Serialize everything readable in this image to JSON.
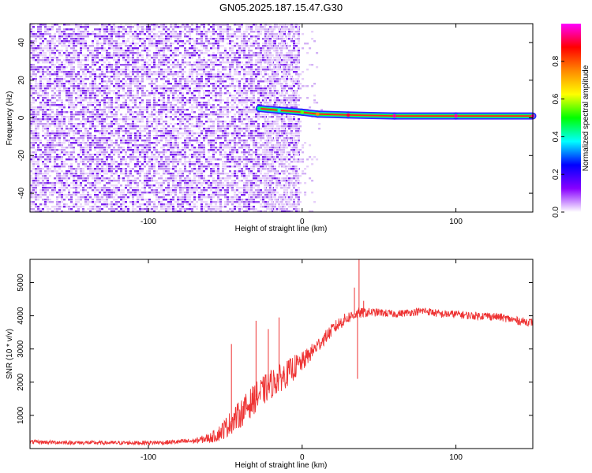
{
  "title": "GN05.2025.187.15.47.G30",
  "chart_data": [
    {
      "type": "heatmap",
      "xlabel": "Height of straight line (km)",
      "ylabel": "Frequency (Hz)",
      "xlim": [
        -177,
        150
      ],
      "ylim": [
        -50,
        50
      ],
      "x_ticks": [
        -100,
        0,
        100
      ],
      "y_ticks": [
        -40,
        -20,
        0,
        20,
        40
      ],
      "grid": false,
      "colorbar": {
        "label": "Normalized spectral amplitude",
        "range": [
          0,
          1
        ],
        "ticks": [
          0.0,
          0.2,
          0.4,
          0.6,
          0.8
        ],
        "colormap": [
          "#ffffff",
          "#8800ff",
          "#0000ff",
          "#00ffff",
          "#00ff00",
          "#ffff00",
          "#ff8800",
          "#ff0000",
          "#ff00ff"
        ]
      },
      "noise_region": {
        "x_range": [
          -177,
          -2
        ],
        "freq_range": [
          -50,
          50
        ],
        "amplitude": 0.15
      },
      "fade_region": {
        "x_range": [
          -25,
          12
        ],
        "amplitude": 0.08
      },
      "signal_line": {
        "points": [
          {
            "x": -28,
            "freq": 5,
            "amplitude": 0.45
          },
          {
            "x": -15,
            "freq": 4,
            "amplitude": 0.4
          },
          {
            "x": 0,
            "freq": 3,
            "amplitude": 0.55
          },
          {
            "x": 10,
            "freq": 2,
            "amplitude": 0.75
          },
          {
            "x": 30,
            "freq": 1.5,
            "amplitude": 0.9
          },
          {
            "x": 60,
            "freq": 1,
            "amplitude": 0.95
          },
          {
            "x": 100,
            "freq": 1,
            "amplitude": 0.95
          },
          {
            "x": 150,
            "freq": 1,
            "amplitude": 0.95
          }
        ],
        "color": "#ff2020"
      }
    },
    {
      "type": "line",
      "xlabel": "Height of straight line (km)",
      "ylabel": "SNR (10 * v/v)",
      "xlim": [
        -177,
        150
      ],
      "ylim": [
        0,
        5700
      ],
      "x_ticks": [
        -100,
        0,
        100
      ],
      "y_ticks": [
        1000,
        2000,
        3000,
        4000,
        5000
      ],
      "grid": false,
      "series": [
        {
          "color": "#ee3333",
          "x": [
            -177,
            -150,
            -120,
            -90,
            -70,
            -60,
            -55,
            -50,
            -45,
            -40,
            -35,
            -30,
            -25,
            -20,
            -15,
            -10,
            -5,
            0,
            5,
            10,
            15,
            20,
            25,
            30,
            35,
            40,
            45,
            50,
            60,
            70,
            80,
            90,
            100,
            110,
            120,
            130,
            140,
            150
          ],
          "values": [
            200,
            180,
            170,
            180,
            230,
            320,
            420,
            620,
            850,
            1050,
            1300,
            1550,
            1750,
            1950,
            2100,
            2250,
            2450,
            2600,
            2850,
            3100,
            3350,
            3600,
            3800,
            3950,
            4050,
            4100,
            4100,
            4100,
            4050,
            4100,
            4150,
            4050,
            4050,
            4000,
            4000,
            3950,
            3850,
            3800
          ],
          "noise_amplitude": [
            60,
            60,
            60,
            70,
            80,
            150,
            220,
            320,
            380,
            420,
            450,
            450,
            450,
            450,
            420,
            400,
            380,
            300,
            250,
            230,
            200,
            200,
            200,
            180,
            160,
            150,
            130,
            120,
            110,
            110,
            120,
            120,
            120,
            120,
            120,
            120,
            120,
            120
          ]
        }
      ],
      "spikes": [
        {
          "x": -46,
          "y": 3150
        },
        {
          "x": -30,
          "y": 3850
        },
        {
          "x": -22,
          "y": 3600
        },
        {
          "x": -15,
          "y": 3950
        },
        {
          "x": 34,
          "y": 4850
        },
        {
          "x": 36,
          "y": 2100
        },
        {
          "x": 37,
          "y": 5700
        },
        {
          "x": 40,
          "y": 4450
        }
      ]
    }
  ]
}
